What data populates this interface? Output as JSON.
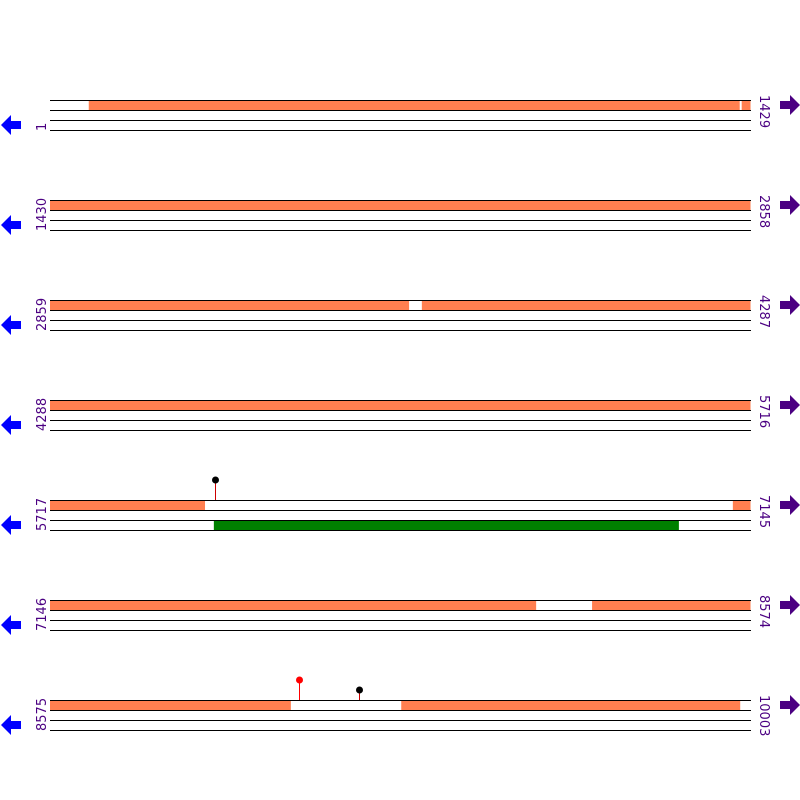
{
  "colors": {
    "feature": "#ff7f50",
    "feature2": "#008000",
    "label": "#4b0082",
    "left_arrow": "#0000ff",
    "right_arrow": "#4b0082",
    "marker_red": "#ff0000",
    "marker_black": "#000000"
  },
  "icons": {
    "left": "arrow-left-icon",
    "right": "arrow-right-icon"
  },
  "rows": [
    {
      "start": "1",
      "end": "1429",
      "s": 1,
      "e": 1429,
      "top": [
        [
          80,
          1407
        ],
        [
          1411,
          1429
        ]
      ],
      "bottom": [],
      "markers": []
    },
    {
      "start": "1430",
      "end": "2858",
      "s": 1430,
      "e": 2858,
      "top": [
        [
          1430,
          2858
        ]
      ],
      "bottom": [],
      "markers": []
    },
    {
      "start": "2859",
      "end": "4287",
      "s": 2859,
      "e": 4287,
      "top": [
        [
          2859,
          3591
        ],
        [
          3617,
          4287
        ]
      ],
      "bottom": [],
      "markers": []
    },
    {
      "start": "4288",
      "end": "5716",
      "s": 4288,
      "e": 5716,
      "top": [
        [
          4288,
          5716
        ]
      ],
      "bottom": [],
      "markers": []
    },
    {
      "start": "5717",
      "end": "7145",
      "s": 5717,
      "e": 7145,
      "top": [
        [
          5717,
          6033
        ],
        [
          7109,
          7145
        ]
      ],
      "bottom": [
        [
          6051,
          6999
        ]
      ],
      "markers": [
        {
          "pos": 6053,
          "color": "black",
          "level": 2
        }
      ]
    },
    {
      "start": "7146",
      "end": "8574",
      "s": 7146,
      "e": 8574,
      "top": [
        [
          7146,
          8137
        ],
        [
          8251,
          8574
        ]
      ],
      "bottom": [],
      "markers": []
    },
    {
      "start": "8575",
      "end": "10003",
      "s": 8575,
      "e": 10003,
      "top": [
        [
          8575,
          9066
        ],
        [
          9291,
          9982
        ]
      ],
      "bottom": [],
      "markers": [
        {
          "pos": 9083,
          "color": "red",
          "level": 2
        },
        {
          "pos": 9205,
          "color": "black",
          "level": 1
        }
      ]
    }
  ]
}
